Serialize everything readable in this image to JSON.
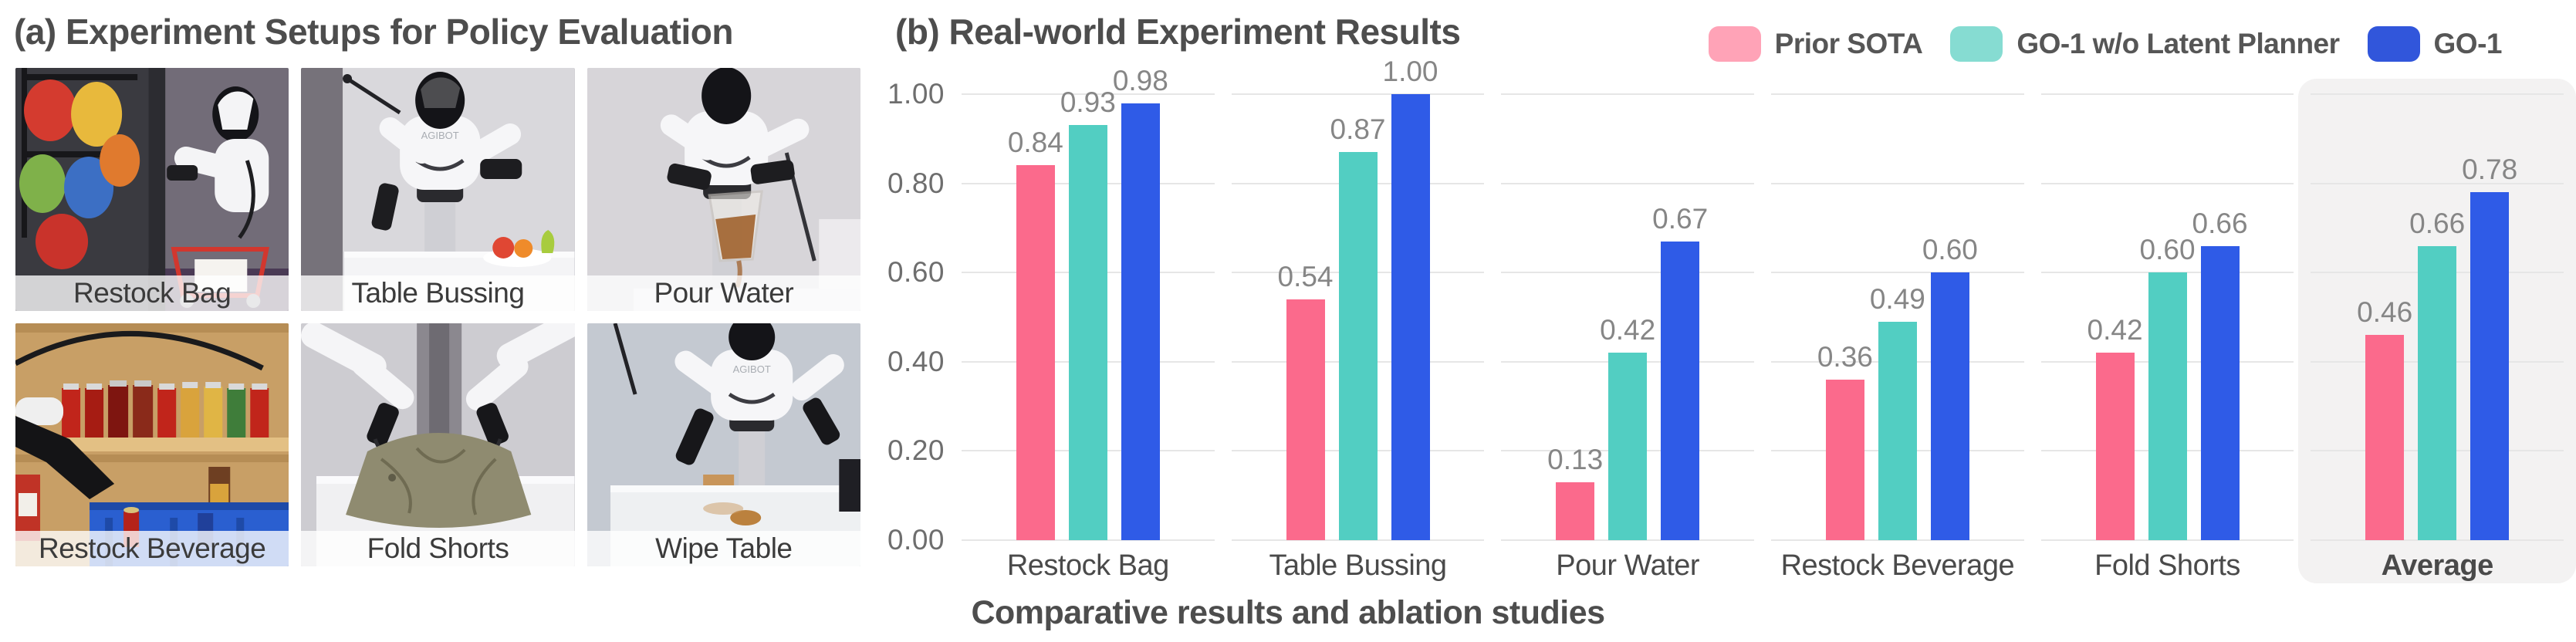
{
  "panel_a": {
    "title": "(a) Experiment Setups for Policy Evaluation",
    "robot_brand": "AGIBOT",
    "tiles": [
      {
        "label": "Restock Bag"
      },
      {
        "label": "Table Bussing"
      },
      {
        "label": "Pour Water"
      },
      {
        "label": "Restock Beverage"
      },
      {
        "label": "Fold Shorts"
      },
      {
        "label": "Wipe Table"
      }
    ]
  },
  "panel_b": {
    "title": "(b) Real-world Experiment Results",
    "caption": "Comparative results and ablation studies",
    "legend": [
      {
        "label": "Prior SOTA",
        "color": "#FFA3B7"
      },
      {
        "label": "GO-1 w/o Latent Planner",
        "color": "#86DCD2"
      },
      {
        "label": "GO-1",
        "color": "#3156DB"
      }
    ]
  },
  "chart_data": {
    "type": "bar",
    "title": "(b) Real-world Experiment Results",
    "categories": [
      "Restock Bag",
      "Table Bussing",
      "Pour Water",
      "Restock Beverage",
      "Fold Shorts",
      "Average"
    ],
    "series": [
      {
        "name": "Prior SOTA",
        "color": "#FB6A8C",
        "values": [
          0.84,
          0.54,
          0.13,
          0.36,
          0.42,
          0.46
        ]
      },
      {
        "name": "GO-1 w/o Latent Planner",
        "color": "#52CEC2",
        "values": [
          0.93,
          0.87,
          0.42,
          0.49,
          0.6,
          0.66
        ]
      },
      {
        "name": "GO-1",
        "color": "#2F5BE7",
        "values": [
          0.98,
          1.0,
          0.67,
          0.6,
          0.66,
          0.78
        ]
      }
    ],
    "ylim": [
      0.0,
      1.0
    ],
    "yticks": [
      "1.00",
      "0.80",
      "0.60",
      "0.40",
      "0.20",
      "0.00"
    ],
    "value_label_decimals": 2,
    "grid": true,
    "gridline_color": "#e6e6e6",
    "highlight_category": "Average",
    "highlight_color": "#f3f2f2",
    "legend_position": "top-right",
    "xlabel": "",
    "ylabel": ""
  }
}
